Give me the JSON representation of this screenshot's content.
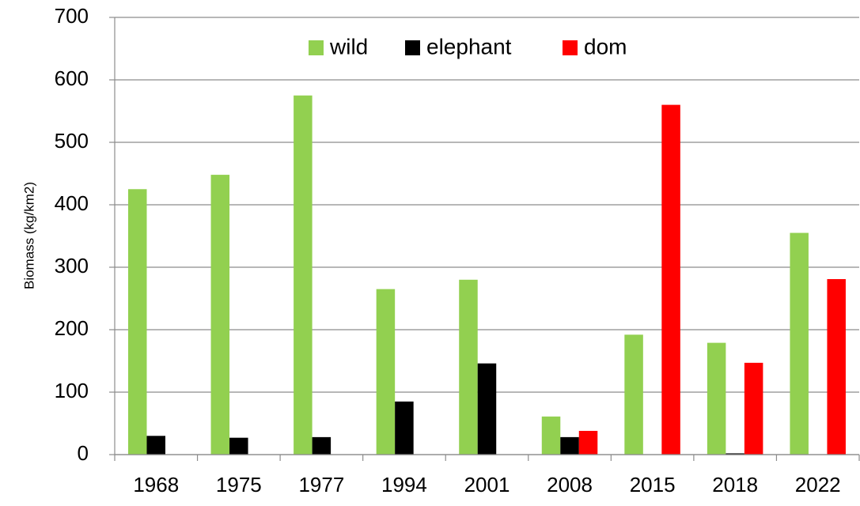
{
  "chart_data": {
    "type": "bar",
    "y_label": "Biomass  (kg/km2)",
    "categories": [
      "1968",
      "1975",
      "1977",
      "1994",
      "2001",
      "2008",
      "2015",
      "2018",
      "2022"
    ],
    "series": [
      {
        "name": "wild",
        "color": "#92d050",
        "values": [
          425,
          448,
          575,
          265,
          280,
          61,
          192,
          179,
          355
        ]
      },
      {
        "name": "elephant",
        "color": "#000000",
        "values": [
          30,
          27,
          28,
          85,
          146,
          28,
          null,
          2,
          null
        ]
      },
      {
        "name": "dom",
        "color": "#ff0000",
        "values": [
          null,
          null,
          null,
          null,
          null,
          38,
          560,
          147,
          281
        ]
      }
    ],
    "ylim": [
      0,
      700
    ],
    "yticks": [
      0,
      100,
      200,
      300,
      400,
      500,
      600,
      700
    ],
    "grid": true,
    "legend": "top"
  }
}
